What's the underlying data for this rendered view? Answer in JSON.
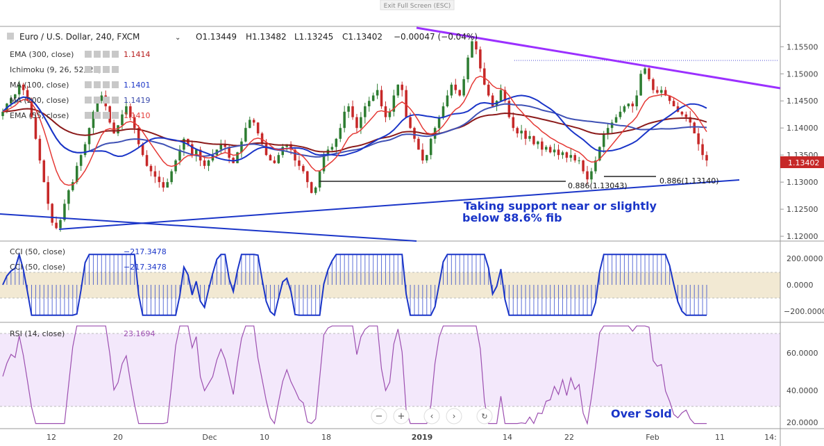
{
  "banner": {
    "text": "Exit Full Screen (ESC)"
  },
  "header": {
    "symbol": "Euro / U.S. Dollar, 240, FXCM",
    "open": "O1.13449",
    "high": "H1.13482",
    "low": "L1.13245",
    "close": "C1.13402",
    "change": "−0.00047 (−0.04%)"
  },
  "indicators": [
    {
      "name": "EMA (300, close)",
      "value": "1.1414",
      "color": "#b71c1c"
    },
    {
      "name": "Ichimoku (9, 26, 52, 26)",
      "value": "",
      "color": "#1565c0"
    },
    {
      "name": "MA (100, close)",
      "value": "1.1401",
      "color": "#1a35c8"
    },
    {
      "name": "MA (200, close)",
      "value": "1.1419",
      "color": "#3949ab"
    },
    {
      "name": "EMA (55, close)",
      "value": "1.1410",
      "color": "#e53935"
    }
  ],
  "annotations": {
    "support_text_1": "Taking support near or slightly",
    "support_text_2": "below 88.6% fib",
    "fib_left": "0.886(1.13043)",
    "fib_right": "0.886(1.13140)",
    "oversold": "Over Sold",
    "last_price": "1.13402"
  },
  "colors": {
    "up": "#2e7d32",
    "down": "#c62828",
    "ema300": "#8b1a1a",
    "ma100": "#1a35c8",
    "ma200": "#3f51b5",
    "ema55": "#e53935",
    "trend": "#9b30ff",
    "support": "#1a35c8",
    "cci": "#1a35c8",
    "rsi": "#9c4fb0",
    "text_blue": "#1a35c8"
  },
  "cci_panel": {
    "label_1": "CCI (50, close)",
    "label_2": "CCI (50, close)",
    "value_1": "−217.3478",
    "value_2": "−217.3478",
    "ticks": [
      "200.0000",
      "0.0000",
      "−200.0000"
    ]
  },
  "rsi_panel": {
    "label": "RSI (14, close)",
    "value": "23.1694",
    "ticks": [
      "60.0000",
      "40.0000",
      "20.0000"
    ]
  },
  "x_axis": {
    "ticks": [
      "12",
      "20",
      "Dec",
      "10",
      "18",
      "2019",
      "14",
      "22",
      "Feb",
      "11",
      "14:"
    ]
  },
  "price_axis": {
    "ticks": [
      "1.15500",
      "1.15000",
      "1.14500",
      "1.14000",
      "1.13500",
      "1.13000",
      "1.12500",
      "1.12000"
    ]
  },
  "chart_data": {
    "type": "candlestick",
    "title": "Euro / U.S. Dollar, 240, FXCM",
    "ylim": [
      1.1195,
      1.1585
    ],
    "series": [
      {
        "name": "EUR/USD close",
        "values": [
          1.143,
          1.1445,
          1.1455,
          1.1462,
          1.148,
          1.147,
          1.145,
          1.142,
          1.138,
          1.134,
          1.13,
          1.126,
          1.1225,
          1.1215,
          1.123,
          1.126,
          1.1285,
          1.13,
          1.133,
          1.135,
          1.137,
          1.14,
          1.143,
          1.145,
          1.146,
          1.144,
          1.141,
          1.139,
          1.1405,
          1.1425,
          1.144,
          1.142,
          1.14,
          1.137,
          1.135,
          1.133,
          1.132,
          1.131,
          1.13,
          1.129,
          1.13,
          1.132,
          1.134,
          1.136,
          1.138,
          1.137,
          1.135,
          1.136,
          1.134,
          1.133,
          1.134,
          1.135,
          1.136,
          1.137,
          1.1365,
          1.1345,
          1.1335,
          1.1355,
          1.1375,
          1.14,
          1.1415,
          1.141,
          1.139,
          1.137,
          1.135,
          1.134,
          1.1335,
          1.135,
          1.1365,
          1.137,
          1.136,
          1.134,
          1.133,
          1.132,
          1.13,
          1.128,
          1.129,
          1.132,
          1.135,
          1.136,
          1.1365,
          1.138,
          1.14,
          1.143,
          1.144,
          1.142,
          1.14,
          1.142,
          1.144,
          1.145,
          1.146,
          1.147,
          1.144,
          1.142,
          1.143,
          1.146,
          1.148,
          1.147,
          1.142,
          1.14,
          1.138,
          1.136,
          1.134,
          1.135,
          1.138,
          1.14,
          1.142,
          1.144,
          1.146,
          1.148,
          1.147,
          1.146,
          1.149,
          1.153,
          1.156,
          1.1545,
          1.151,
          1.148,
          1.146,
          1.144,
          1.145,
          1.147,
          1.145,
          1.142,
          1.14,
          1.139,
          1.1395,
          1.138,
          1.1385,
          1.137,
          1.1375,
          1.136,
          1.1365,
          1.1355,
          1.136,
          1.135,
          1.1355,
          1.1345,
          1.135,
          1.134,
          1.134,
          1.132,
          1.1305,
          1.132,
          1.134,
          1.1365,
          1.139,
          1.14,
          1.141,
          1.142,
          1.143,
          1.144,
          1.1445,
          1.144,
          1.146,
          1.15,
          1.151,
          1.149,
          1.147,
          1.1465,
          1.147,
          1.146,
          1.145,
          1.144,
          1.143,
          1.1425,
          1.142,
          1.141,
          1.139,
          1.137,
          1.135,
          1.134
        ]
      }
    ],
    "overlays": [
      {
        "name": "EMA (300, close)",
        "value": 1.1414
      },
      {
        "name": "MA (100, close)",
        "value": 1.1401
      },
      {
        "name": "MA (200, close)",
        "value": 1.1419
      },
      {
        "name": "EMA (55, close)",
        "value": 1.141
      }
    ],
    "fib_levels": [
      1.13043,
      1.1314
    ],
    "cci_range": [
      -230,
      230
    ],
    "rsi_range": [
      20,
      76
    ]
  }
}
